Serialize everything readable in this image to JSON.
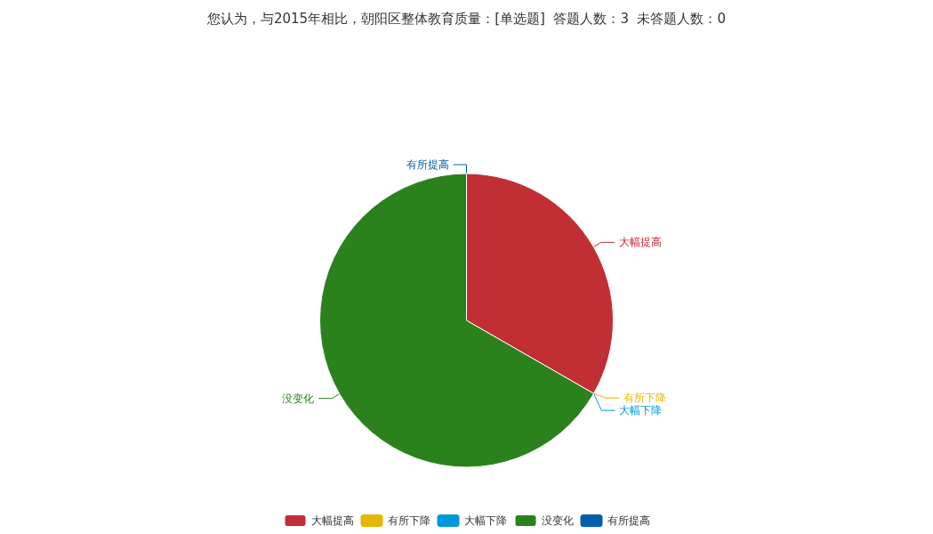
{
  "chart_data": {
    "type": "pie",
    "title": "您认为，与2015年相比，朝阳区整体教育质量：[单选题]  答题人数：3  未答题人数：0",
    "categories": [
      "大幅提高",
      "有所下降",
      "大幅下降",
      "没变化",
      "有所提高"
    ],
    "values": [
      33.3,
      0,
      0,
      66.7,
      0
    ],
    "colors": [
      "#c12e34",
      "#e6b600",
      "#0098d9",
      "#2b821d",
      "#005eaa"
    ],
    "legend": "bottom"
  }
}
